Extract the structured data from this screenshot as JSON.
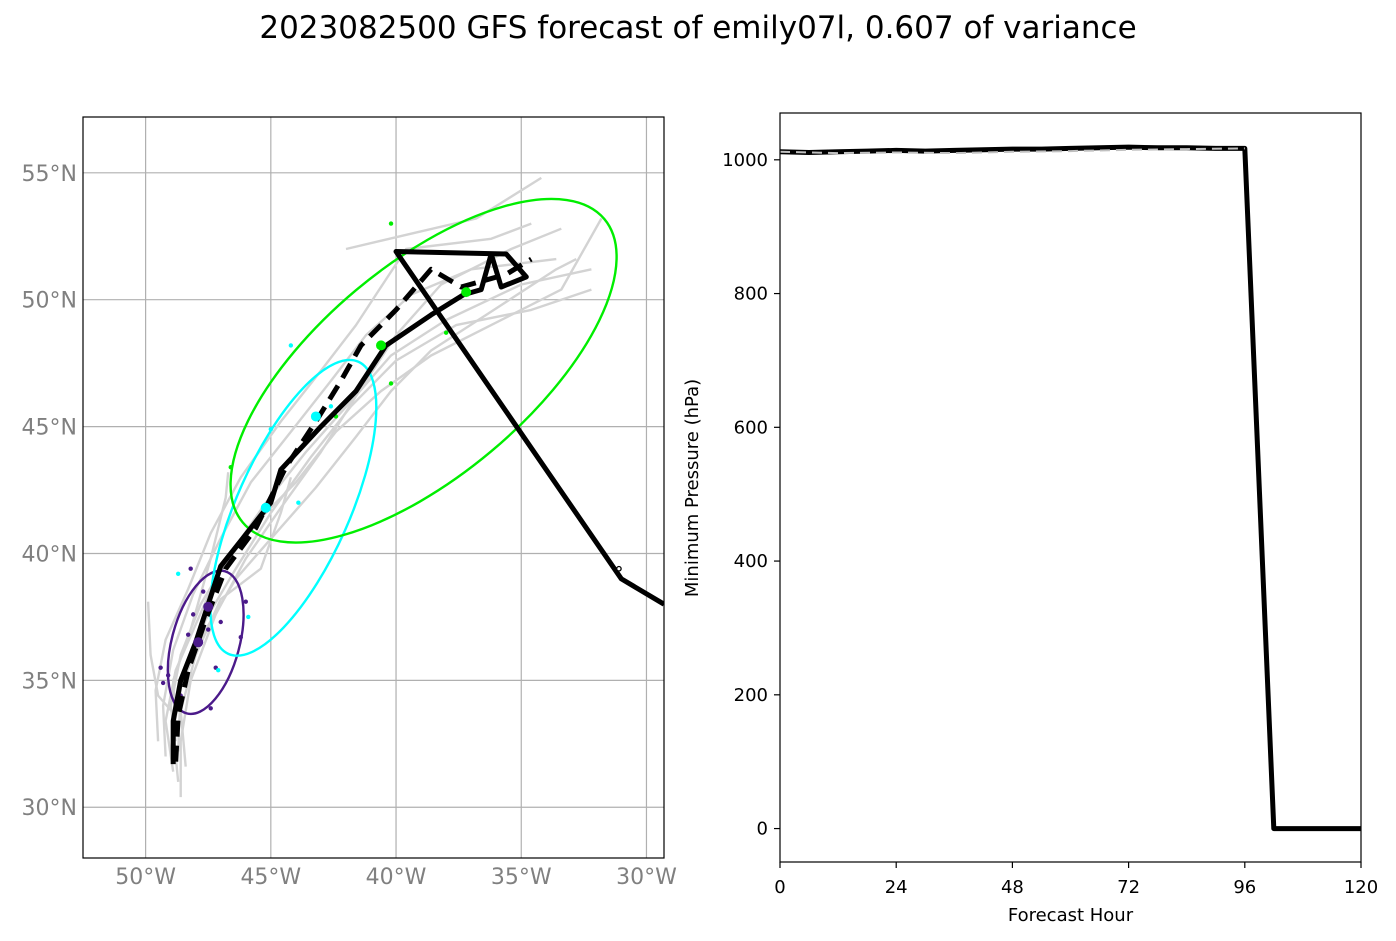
{
  "title": "2023082500 GFS forecast of emily07l, 0.607 of variance",
  "chart_data": [
    {
      "type": "map-track",
      "xlim": [
        -52.5,
        -29.3
      ],
      "ylim": [
        28,
        57.2
      ],
      "x_ticks": [
        -50,
        -45,
        -40,
        -35,
        -30
      ],
      "x_tick_labels": [
        "50°W",
        "45°W",
        "40°W",
        "35°W",
        "30°W"
      ],
      "y_ticks": [
        30,
        35,
        40,
        45,
        50,
        55
      ],
      "y_tick_labels": [
        "30°N",
        "35°N",
        "40°N",
        "45°N",
        "50°N",
        "55°N"
      ],
      "grid": true,
      "colors": {
        "ensemble": "#d3d3d3",
        "track": "#000000",
        "ellipse_early": "#4b1a8a",
        "ellipse_mid": "#00ffff",
        "ellipse_late": "#00ee00",
        "tick_label": "#808080"
      },
      "ensemble_members": [
        [
          [
            -48.8,
            32.6
          ],
          [
            -49.0,
            34.0
          ],
          [
            -48.6,
            36.0
          ],
          [
            -47.8,
            38.0
          ],
          [
            -46.6,
            40.0
          ],
          [
            -45.2,
            42.0
          ],
          [
            -43.6,
            44.0
          ],
          [
            -41.8,
            46.0
          ],
          [
            -40.2,
            47.8
          ],
          [
            -38.0,
            49.2
          ],
          [
            -35.0,
            50.6
          ],
          [
            -32.2,
            51.2
          ]
        ],
        [
          [
            -48.7,
            31.0
          ],
          [
            -48.9,
            33.0
          ],
          [
            -48.5,
            35.2
          ],
          [
            -47.6,
            37.4
          ],
          [
            -46.4,
            39.4
          ],
          [
            -45.0,
            41.6
          ],
          [
            -43.4,
            43.8
          ],
          [
            -41.8,
            45.8
          ],
          [
            -40.0,
            47.6
          ],
          [
            -37.6,
            49.0
          ],
          [
            -34.6,
            49.6
          ],
          [
            -32.2,
            50.4
          ]
        ],
        [
          [
            -48.6,
            30.4
          ],
          [
            -48.6,
            32.6
          ],
          [
            -48.2,
            35.0
          ],
          [
            -47.2,
            37.6
          ],
          [
            -46.0,
            39.8
          ],
          [
            -44.6,
            41.8
          ],
          [
            -43.0,
            44.0
          ],
          [
            -41.6,
            46.2
          ],
          [
            -40.0,
            48.6
          ],
          [
            -38.2,
            50.6
          ],
          [
            -35.4,
            52.0
          ],
          [
            -33.4,
            52.8
          ]
        ],
        [
          [
            -49.2,
            32.0
          ],
          [
            -49.3,
            34.0
          ],
          [
            -48.9,
            36.2
          ],
          [
            -48.1,
            38.4
          ],
          [
            -47.0,
            40.6
          ],
          [
            -45.8,
            42.8
          ],
          [
            -44.2,
            44.8
          ],
          [
            -42.6,
            46.8
          ],
          [
            -41.2,
            48.6
          ],
          [
            -39.4,
            50.2
          ],
          [
            -37.0,
            51.2
          ],
          [
            -33.6,
            51.6
          ]
        ],
        [
          [
            -49.5,
            32.6
          ],
          [
            -49.6,
            34.6
          ],
          [
            -49.2,
            36.6
          ],
          [
            -48.3,
            38.6
          ],
          [
            -47.4,
            40.8
          ],
          [
            -46.2,
            43.0
          ],
          [
            -44.6,
            45.2
          ],
          [
            -43.0,
            47.2
          ],
          [
            -41.6,
            49.0
          ],
          [
            -40.4,
            50.8
          ],
          [
            -39.6,
            52.0
          ],
          [
            -36.2,
            52.4
          ],
          [
            -34.6,
            53.0
          ]
        ],
        [
          [
            -48.9,
            31.4
          ],
          [
            -49.2,
            33.4
          ],
          [
            -48.8,
            35.4
          ],
          [
            -48.0,
            37.2
          ],
          [
            -47.2,
            39.0
          ],
          [
            -45.8,
            41.0
          ],
          [
            -44.0,
            42.8
          ],
          [
            -42.4,
            44.8
          ],
          [
            -40.6,
            46.4
          ],
          [
            -38.6,
            47.8
          ],
          [
            -36.2,
            49.0
          ],
          [
            -33.4,
            50.4
          ],
          [
            -31.8,
            53.2
          ]
        ],
        [
          [
            -49.9,
            38.1
          ],
          [
            -49.8,
            36.0
          ],
          [
            -49.5,
            34.4
          ],
          [
            -48.8,
            33.6
          ]
        ],
        [
          [
            -48.4,
            31.6
          ],
          [
            -48.6,
            33.8
          ],
          [
            -48.0,
            36.0
          ],
          [
            -47.0,
            38.2
          ],
          [
            -45.4,
            39.4
          ],
          [
            -44.6,
            41.6
          ],
          [
            -44.2,
            43.0
          ]
        ],
        [
          [
            -48.8,
            33.0
          ],
          [
            -48.9,
            35.0
          ],
          [
            -48.2,
            37.0
          ],
          [
            -47.4,
            39.8
          ],
          [
            -46.8,
            42.2
          ],
          [
            -46.7,
            43.2
          ]
        ],
        [
          [
            -48.7,
            32.2
          ],
          [
            -48.6,
            34.8
          ],
          [
            -47.6,
            37.0
          ],
          [
            -46.4,
            39.0
          ],
          [
            -44.8,
            40.8
          ],
          [
            -43.2,
            42.6
          ],
          [
            -41.6,
            44.6
          ],
          [
            -40.2,
            46.4
          ],
          [
            -38.6,
            48.0
          ],
          [
            -36.4,
            49.4
          ],
          [
            -33.6,
            51.2
          ],
          [
            -32.8,
            51.6
          ]
        ],
        [
          [
            -42.0,
            52.0
          ],
          [
            -39.4,
            52.6
          ],
          [
            -36.8,
            53.2
          ],
          [
            -34.2,
            54.8
          ]
        ]
      ],
      "mean_track": [
        [
          -48.9,
          31.7
        ],
        [
          -48.9,
          33.4
        ],
        [
          -48.6,
          35.0
        ],
        [
          -48.0,
          36.5
        ],
        [
          -47.6,
          37.7
        ],
        [
          -47.0,
          39.5
        ],
        [
          -46.2,
          40.5
        ],
        [
          -45.0,
          42.0
        ],
        [
          -44.6,
          43.3
        ],
        [
          -43.0,
          45.0
        ],
        [
          -41.6,
          46.4
        ],
        [
          -40.4,
          48.2
        ],
        [
          -38.6,
          49.4
        ],
        [
          -37.3,
          50.2
        ],
        [
          -36.6,
          50.4
        ],
        [
          -36.2,
          51.8
        ],
        [
          -35.8,
          50.5
        ],
        [
          -34.8,
          50.9
        ],
        [
          -35.6,
          51.8
        ],
        [
          -40.0,
          51.9
        ],
        [
          -31.0,
          39.0
        ],
        [
          -29.3,
          38.0
        ]
      ],
      "dashed_track": [
        [
          -48.8,
          31.8
        ],
        [
          -48.7,
          33.6
        ],
        [
          -48.3,
          35.4
        ],
        [
          -47.6,
          37.4
        ],
        [
          -46.8,
          39.4
        ],
        [
          -45.6,
          41.0
        ],
        [
          -44.4,
          43.4
        ],
        [
          -43.2,
          45.2
        ],
        [
          -42.2,
          46.8
        ],
        [
          -41.4,
          48.2
        ],
        [
          -40.0,
          49.6
        ],
        [
          -38.6,
          51.2
        ],
        [
          -37.4,
          50.5
        ],
        [
          -35.6,
          51.0
        ],
        [
          -34.6,
          51.6
        ]
      ],
      "mean_points": [
        {
          "lon": -47.9,
          "lat": 36.5,
          "color": "#4b1a8a"
        },
        {
          "lon": -47.5,
          "lat": 37.9,
          "color": "#4b1a8a"
        },
        {
          "lon": -45.2,
          "lat": 41.8,
          "color": "#00ffff"
        },
        {
          "lon": -43.2,
          "lat": 45.4,
          "color": "#00ffff"
        },
        {
          "lon": -40.6,
          "lat": 48.2,
          "color": "#00ee00"
        },
        {
          "lon": -37.2,
          "lat": 50.3,
          "color": "#00ee00"
        }
      ],
      "member_points": [
        {
          "lon": -49.4,
          "lat": 35.5,
          "color": "#4b1a8a"
        },
        {
          "lon": -49.3,
          "lat": 34.9,
          "color": "#4b1a8a"
        },
        {
          "lon": -49.1,
          "lat": 35.2,
          "color": "#4b1a8a"
        },
        {
          "lon": -48.8,
          "lat": 34.1,
          "color": "#4b1a8a"
        },
        {
          "lon": -48.6,
          "lat": 34.4,
          "color": "#4b1a8a"
        },
        {
          "lon": -48.3,
          "lat": 36.8,
          "color": "#4b1a8a"
        },
        {
          "lon": -48.2,
          "lat": 39.4,
          "color": "#4b1a8a"
        },
        {
          "lon": -48.1,
          "lat": 37.6,
          "color": "#4b1a8a"
        },
        {
          "lon": -47.7,
          "lat": 38.5,
          "color": "#4b1a8a"
        },
        {
          "lon": -47.5,
          "lat": 37.0,
          "color": "#4b1a8a"
        },
        {
          "lon": -47.4,
          "lat": 33.9,
          "color": "#4b1a8a"
        },
        {
          "lon": -47.2,
          "lat": 35.5,
          "color": "#4b1a8a"
        },
        {
          "lon": -47.0,
          "lat": 37.3,
          "color": "#4b1a8a"
        },
        {
          "lon": -46.6,
          "lat": 39.7,
          "color": "#4b1a8a"
        },
        {
          "lon": -46.2,
          "lat": 36.7,
          "color": "#4b1a8a"
        },
        {
          "lon": -46.0,
          "lat": 38.1,
          "color": "#4b1a8a"
        },
        {
          "lon": -48.7,
          "lat": 39.2,
          "color": "#00ffff"
        },
        {
          "lon": -47.1,
          "lat": 35.4,
          "color": "#00ffff"
        },
        {
          "lon": -45.9,
          "lat": 37.5,
          "color": "#00ffff"
        },
        {
          "lon": -45.0,
          "lat": 44.9,
          "color": "#00ffff"
        },
        {
          "lon": -44.2,
          "lat": 48.2,
          "color": "#00ffff"
        },
        {
          "lon": -44.0,
          "lat": 44.0,
          "color": "#00ffff"
        },
        {
          "lon": -43.9,
          "lat": 42.0,
          "color": "#00ffff"
        },
        {
          "lon": -42.6,
          "lat": 45.8,
          "color": "#00ffff"
        },
        {
          "lon": -40.2,
          "lat": 53.0,
          "color": "#00ee00"
        },
        {
          "lon": -46.6,
          "lat": 43.4,
          "color": "#00ee00"
        },
        {
          "lon": -40.2,
          "lat": 46.7,
          "color": "#00ee00"
        },
        {
          "lon": -38.0,
          "lat": 48.7,
          "color": "#00ee00"
        },
        {
          "lon": -36.0,
          "lat": 51.8,
          "color": "#00ee00"
        },
        {
          "lon": -42.4,
          "lat": 45.4,
          "color": "#00ee00"
        }
      ],
      "ellipses": [
        {
          "cx": -47.6,
          "cy": 36.5,
          "rx": 1.35,
          "ry": 2.9,
          "rot": 15,
          "color": "#4b1a8a"
        },
        {
          "cx": -44.1,
          "cy": 41.8,
          "rx": 2.25,
          "ry": 6.3,
          "rot": 24,
          "color": "#00ffff"
        },
        {
          "cx": -38.9,
          "cy": 47.2,
          "rx": 4.2,
          "ry": 9.3,
          "rot": 50,
          "color": "#00ee00"
        }
      ],
      "open_marker": {
        "lon": -31.1,
        "lat": 39.4
      }
    },
    {
      "type": "line",
      "xlabel": "Forecast Hour",
      "ylabel": "Minimum Pressure (hPa)",
      "xlim": [
        0,
        120
      ],
      "ylim": [
        -50,
        1070
      ],
      "x_ticks": [
        0,
        24,
        48,
        72,
        96,
        120
      ],
      "y_ticks": [
        0,
        200,
        400,
        600,
        800,
        1000
      ],
      "series": [
        {
          "style": "solid",
          "color": "#000000",
          "x": [
            0,
            6,
            12,
            18,
            24,
            30,
            36,
            42,
            48,
            54,
            60,
            66,
            72,
            78,
            84,
            90,
            96,
            102,
            108,
            114,
            120
          ],
          "y": [
            1012,
            1011,
            1012,
            1013,
            1014,
            1013,
            1014,
            1015,
            1016,
            1016,
            1017,
            1018,
            1019,
            1018,
            1018,
            1017,
            1017,
            0,
            0,
            0,
            0
          ]
        },
        {
          "style": "dashed",
          "color": "#c0c0c0",
          "x": [
            0,
            12,
            24,
            36,
            48,
            60,
            72,
            84,
            96
          ],
          "y": [
            1012,
            1010,
            1011,
            1010,
            1012,
            1013,
            1015,
            1016,
            1017
          ]
        }
      ]
    }
  ]
}
